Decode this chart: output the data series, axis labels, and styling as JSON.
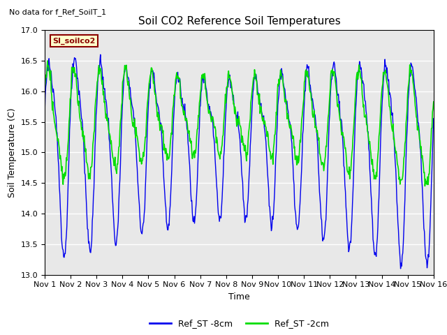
{
  "title": "Soil CO2 Reference Soil Temperatures",
  "xlabel": "Time",
  "ylabel": "Soil Temperature (C)",
  "note": "No data for f_Ref_SoilT_1",
  "site_label": "SI_soilco2",
  "ylim": [
    13.0,
    17.0
  ],
  "yticks": [
    13.0,
    13.5,
    14.0,
    14.5,
    15.0,
    15.5,
    16.0,
    16.5,
    17.0
  ],
  "xtick_labels": [
    "Nov 1",
    "Nov 2",
    "Nov 3",
    "Nov 4",
    "Nov 5",
    "Nov 6",
    "Nov 7",
    "Nov 8",
    "Nov 9",
    "Nov 10",
    "Nov 11",
    "Nov 12",
    "Nov 13",
    "Nov 14",
    "Nov 15",
    "Nov 16"
  ],
  "color_blue": "#0000ee",
  "color_green": "#00dd00",
  "legend_blue": "Ref_ST -8cm",
  "legend_green": "Ref_ST -2cm",
  "background_color": "#e8e8e8",
  "title_fontsize": 11,
  "label_fontsize": 9,
  "tick_fontsize": 8,
  "note_fontsize": 8,
  "site_fontsize": 8
}
